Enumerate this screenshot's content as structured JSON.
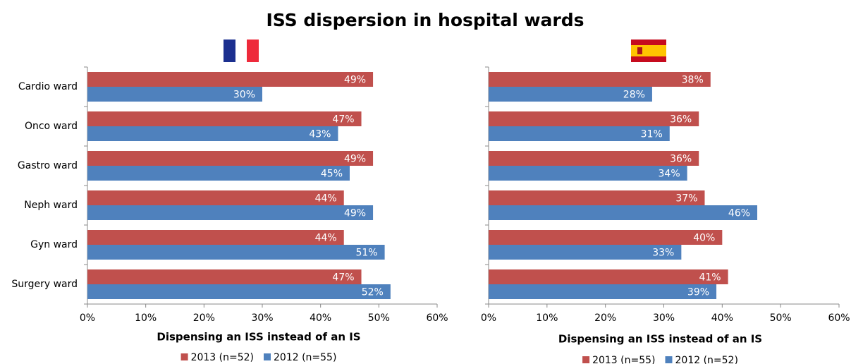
{
  "title": "ISS dispersion in hospital wards",
  "chart_data": [
    {
      "type": "bar",
      "orientation": "horizontal",
      "categories": [
        "Cardio ward",
        "Onco ward",
        "Gastro ward",
        "Neph ward",
        "Gyn ward",
        "Surgery ward"
      ],
      "series": [
        {
          "name": "2013 (n=52)",
          "color": "#c0504d",
          "values": [
            49,
            47,
            49,
            44,
            44,
            47
          ],
          "value_labels": [
            "49%",
            "47%",
            "49%",
            "44%",
            "44%",
            "47%"
          ]
        },
        {
          "name": "2012 (n=55)",
          "color": "#4f81bd",
          "values": [
            30,
            43,
            45,
            49,
            51,
            52
          ],
          "value_labels": [
            "30%",
            "43%",
            "45%",
            "49%",
            "51%",
            "52%"
          ]
        }
      ],
      "xlim": [
        0,
        60
      ],
      "xticks": [
        {
          "value": 0,
          "label": "0%"
        },
        {
          "value": 10,
          "label": "10%"
        },
        {
          "value": 20,
          "label": "20%"
        },
        {
          "value": 30,
          "label": "30%"
        },
        {
          "value": 40,
          "label": "40%"
        },
        {
          "value": 50,
          "label": "50%"
        },
        {
          "value": 60,
          "label": "60%"
        }
      ],
      "x_label": "Dispensing an ISS instead of an IS",
      "legend": "bottom"
    },
    {
      "type": "bar",
      "orientation": "horizontal",
      "series": [
        {
          "name": "2013 (n=55)",
          "color": "#c0504d",
          "values": [
            38,
            36,
            36,
            37,
            40,
            41
          ],
          "value_labels": [
            "38%",
            "36%",
            "36%",
            "37%",
            "40%",
            "41%"
          ]
        },
        {
          "name": "2012 (n=52)",
          "color": "#4f81bd",
          "values": [
            28,
            31,
            34,
            46,
            33,
            39
          ],
          "value_labels": [
            "28%",
            "31%",
            "34%",
            "46%",
            "33%",
            "39%"
          ]
        }
      ],
      "xlim": [
        0,
        60
      ],
      "xticks": [
        {
          "value": 0,
          "label": "0%"
        },
        {
          "value": 10,
          "label": "10%"
        },
        {
          "value": 20,
          "label": "20%"
        },
        {
          "value": 30,
          "label": "30%"
        },
        {
          "value": 40,
          "label": "40%"
        },
        {
          "value": 50,
          "label": "50%"
        },
        {
          "value": 60,
          "label": "60%"
        }
      ],
      "x_label": "Dispensing an ISS instead of an IS",
      "legend": "bottom"
    }
  ]
}
